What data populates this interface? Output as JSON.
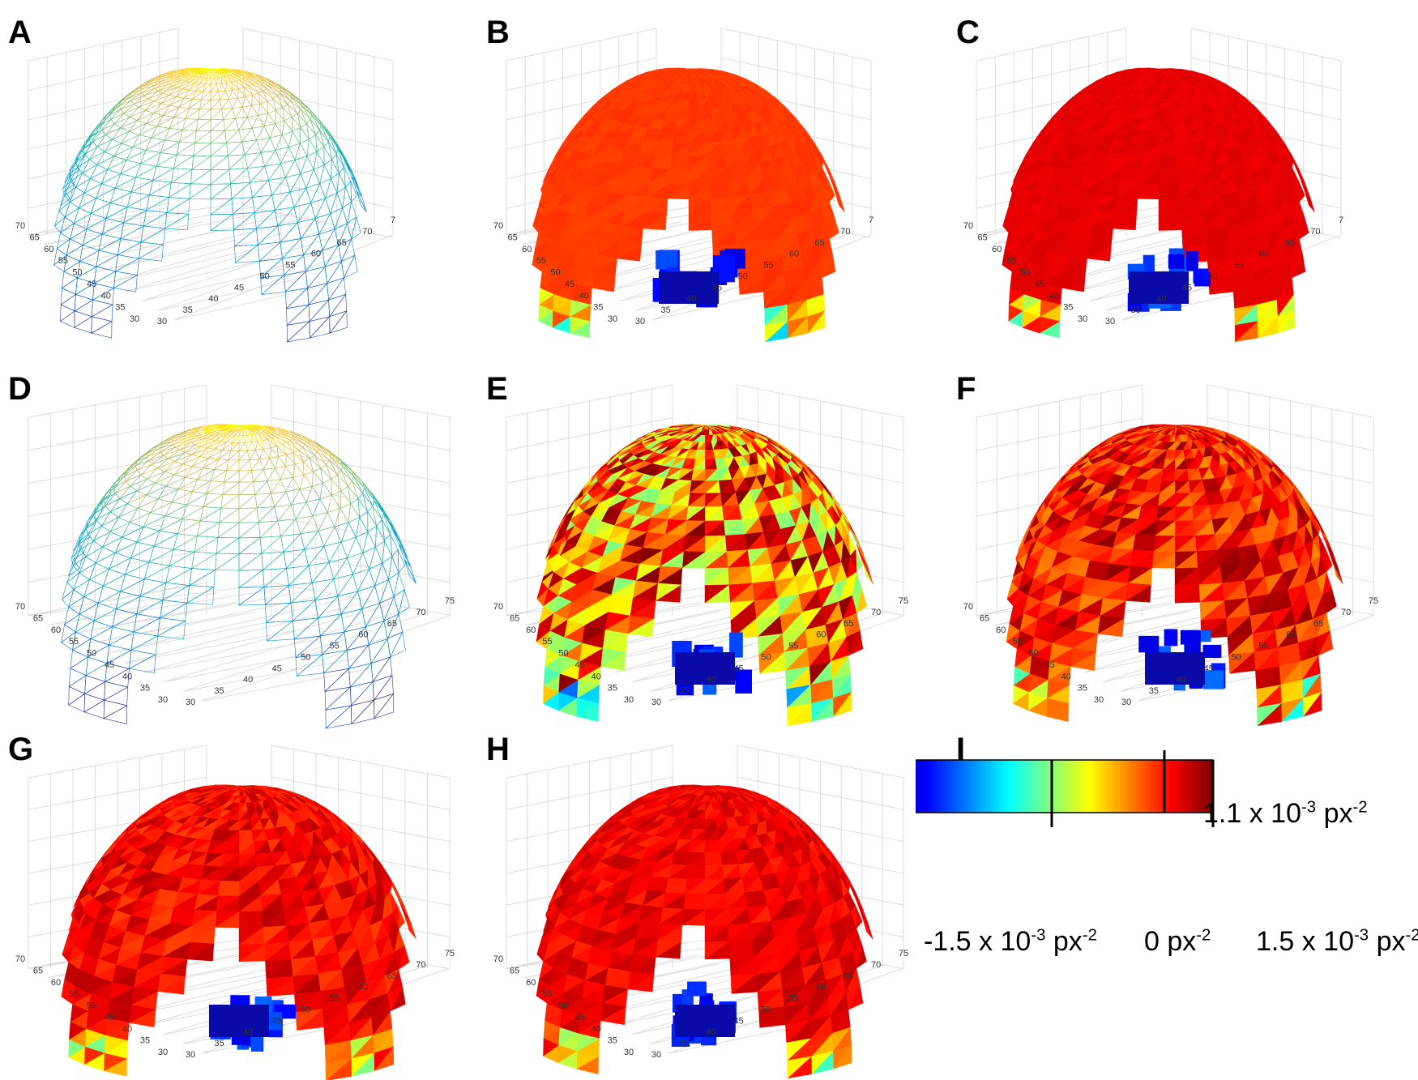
{
  "panels": [
    {
      "letter": "A",
      "style": "mesh"
    },
    {
      "letter": "B",
      "style": "flat-orange"
    },
    {
      "letter": "C",
      "style": "flat-red"
    },
    {
      "letter": "D",
      "style": "mesh-noisy"
    },
    {
      "letter": "E",
      "style": "very-noisy"
    },
    {
      "letter": "F",
      "style": "noisy"
    },
    {
      "letter": "G",
      "style": "mild-noisy"
    },
    {
      "letter": "H",
      "style": "mild-noisy-2"
    }
  ],
  "colorbar": {
    "letter": "I",
    "min_label": "-1.5 x 10",
    "min_exp": "-3",
    "min_unit": " px",
    "min_unit_exp": "-2",
    "zero_label": "0 px",
    "zero_exp": "-2",
    "max_label": "1.5 x 10",
    "max_exp": "-3",
    "max_unit": " px",
    "max_unit_exp": "-2",
    "marker_label": "1.1 x 10",
    "marker_exp": "-3",
    "marker_unit": " px",
    "marker_unit_exp": "-2",
    "colormap": "jet"
  },
  "axis_ticks": {
    "left_axis": [
      "70",
      "65",
      "60",
      "55",
      "50",
      "45",
      "40",
      "35",
      "30"
    ],
    "right_axis_top": [
      "30",
      "35",
      "40",
      "45",
      "50",
      "55",
      "60",
      "65",
      "70",
      "7"
    ],
    "right_axis": [
      "30",
      "35",
      "40",
      "45",
      "50",
      "55",
      "60",
      "65",
      "70",
      "75"
    ]
  },
  "colors": {
    "orange_flat": "#ff6600",
    "red_flat": "#ff0a00",
    "dark_blue": "#0000a0",
    "dark_red": "#800000"
  }
}
